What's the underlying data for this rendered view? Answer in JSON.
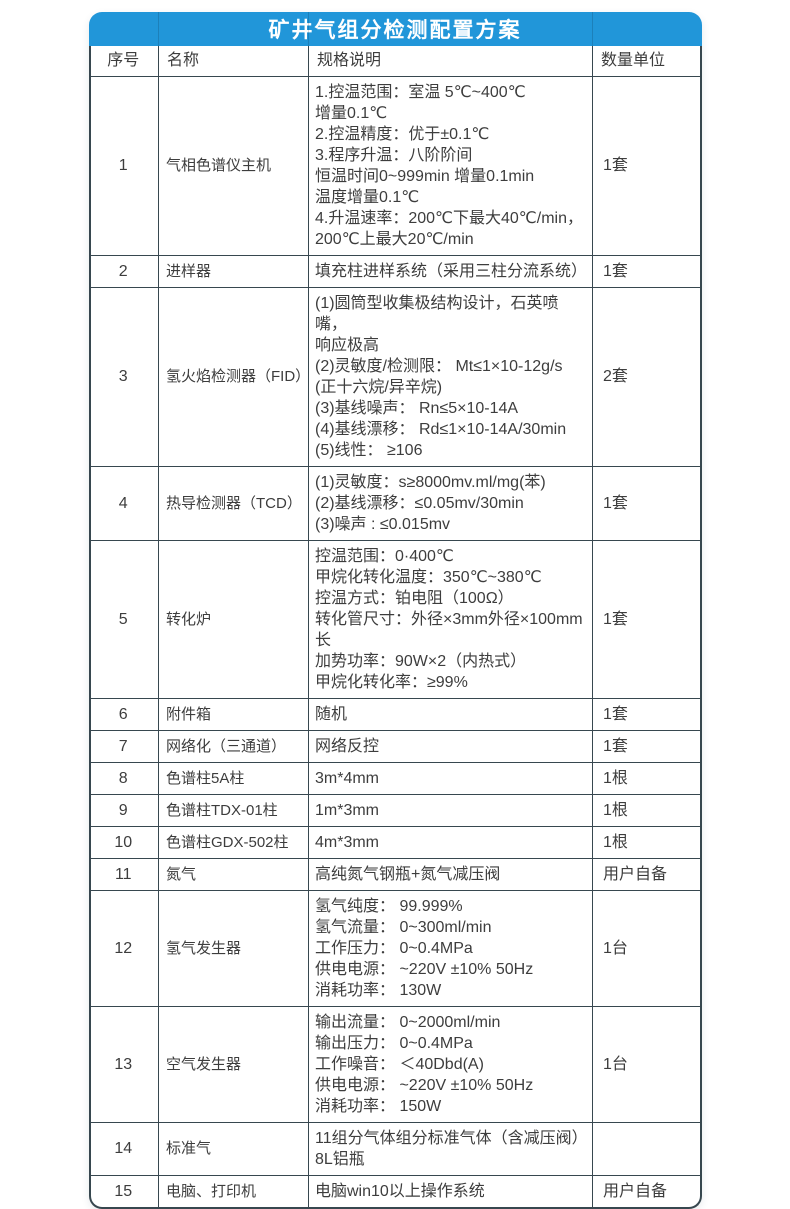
{
  "title": "矿井气组分检测配置方案",
  "colors": {
    "header_bg": "#2196d9",
    "header_text": "#ffffff",
    "border": "#37474f",
    "text": "#3d3d3d"
  },
  "table": {
    "headers": [
      "序号",
      "名称",
      "规格说明",
      "数量单位"
    ],
    "rows": [
      {
        "no": "1",
        "name": "气相色谱仪主机",
        "spec": "1.控温范围：室温 5℃~400℃\n增量0.1℃\n2.控温精度：优于±0.1℃\n3.程序升温：八阶阶间\n恒温时间0~999min 增量0.1min\n温度增量0.1℃\n4.升温速率：200℃下最大40℃/min，\n200℃上最大20℃/min",
        "qty": "1套"
      },
      {
        "no": "2",
        "name": "进样器",
        "spec": "填充柱进样系统（采用三柱分流系统）",
        "qty": "1套"
      },
      {
        "no": "3",
        "name": "氢火焰检测器（FID）",
        "spec": "(1)圆筒型收集极结构设计，石英喷嘴，\n响应极高\n(2)灵敏度/检测限： Mt≤1×10-12g/s\n(正十六烷/异辛烷)\n(3)基线噪声： Rn≤5×10-14A\n(4)基线漂移： Rd≤1×10-14A/30min\n(5)线性： ≥106",
        "qty": "2套"
      },
      {
        "no": "4",
        "name": "热导检测器（TCD）",
        "spec": "(1)灵敏度：s≥8000mv.ml/mg(苯)\n(2)基线漂移：≤0.05mv/30min\n(3)噪声 : ≤0.015mv",
        "qty": "1套"
      },
      {
        "no": "5",
        "name": "转化炉",
        "spec": "控温范围：0·400℃\n甲烷化转化温度：350℃~380℃\n控温方式：铂电阻（100Ω）\n转化管尺寸：外径×3mm外径×100mm长\n 加势功率：90W×2（内热式）\n甲烷化转化率：≥99%",
        "qty": "1套"
      },
      {
        "no": "6",
        "name": "附件箱",
        "spec": "随机",
        "qty": "1套"
      },
      {
        "no": "7",
        "name": "网络化（三通道）",
        "spec": "网络反控",
        "qty": "1套"
      },
      {
        "no": "8",
        "name": "色谱柱5A柱",
        "spec": "3m*4mm",
        "qty": "1根"
      },
      {
        "no": "9",
        "name": "色谱柱TDX-01柱",
        "spec": "1m*3mm",
        "qty": "1根"
      },
      {
        "no": "10",
        "name": "色谱柱GDX-502柱",
        "spec": "4m*3mm",
        "qty": "1根"
      },
      {
        "no": "11",
        "name": "氮气",
        "spec": "高纯氮气钢瓶+氮气减压阀",
        "qty": "用户自备"
      },
      {
        "no": "12",
        "name": "氢气发生器",
        "spec": "氢气纯度： 99.999%\n氢气流量： 0~300ml/min\n工作压力： 0~0.4MPa\n供电电源： ~220V ±10% 50Hz\n消耗功率： 130W",
        "qty": "1台"
      },
      {
        "no": "13",
        "name": "空气发生器",
        "spec": "输出流量： 0~2000ml/min\n输出压力： 0~0.4MPa\n工作噪音： ＜40Dbd(A)\n供电电源： ~220V ±10% 50Hz\n消耗功率： 150W",
        "qty": "1台"
      },
      {
        "no": "14",
        "name": "标准气",
        "spec": "11组分气体组分标准气体（含减压阀）\n8L铝瓶",
        "qty": ""
      },
      {
        "no": "15",
        "name": "电脑、打印机",
        "spec": "电脑win10以上操作系统",
        "qty": "用户自备"
      }
    ]
  }
}
